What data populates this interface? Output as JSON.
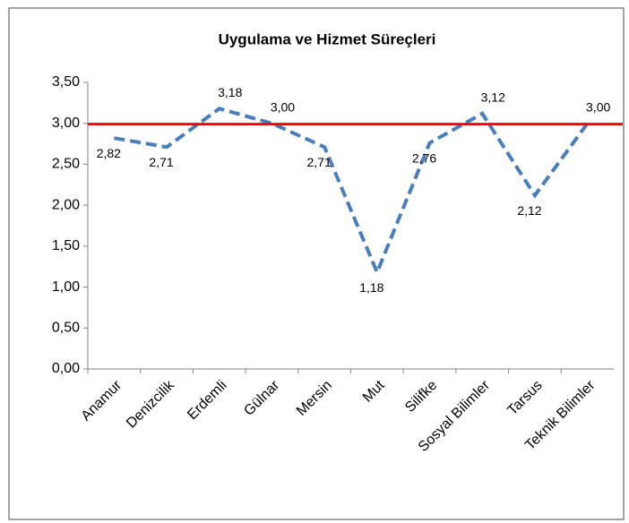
{
  "chart_data": {
    "type": "line",
    "title": "Uygulama ve Hizmet Süreçleri",
    "categories": [
      "Anamur",
      "Denizcilik",
      "Erdemli",
      "Gülnar",
      "Mersin",
      "Mut",
      "Silifke",
      "Sosyal Bilimler",
      "Tarsus",
      "Teknik Bilimler"
    ],
    "series": [
      {
        "color": "#4a7ebb",
        "values": [
          2.82,
          2.71,
          3.18,
          3.0,
          2.71,
          1.18,
          2.76,
          3.12,
          2.12,
          3.0
        ],
        "value_labels": [
          "2,82",
          "2,71",
          "3,18",
          "3,00",
          "2,71",
          "1,18",
          "2,76",
          "3,12",
          "2,12",
          "3,00"
        ]
      }
    ],
    "reference_line": {
      "value": 2.99,
      "color": "#ff0000"
    },
    "ylim": [
      0,
      3.5
    ],
    "yticks": [
      {
        "value": 0,
        "label": "0,00"
      },
      {
        "value": 0.5,
        "label": "0,50"
      },
      {
        "value": 1,
        "label": "1,00"
      },
      {
        "value": 1.5,
        "label": "1,50"
      },
      {
        "value": 2,
        "label": "2,00"
      },
      {
        "value": 2.5,
        "label": "2,50"
      },
      {
        "value": 3,
        "label": "3,00"
      },
      {
        "value": 3.5,
        "label": "3,50"
      }
    ]
  }
}
